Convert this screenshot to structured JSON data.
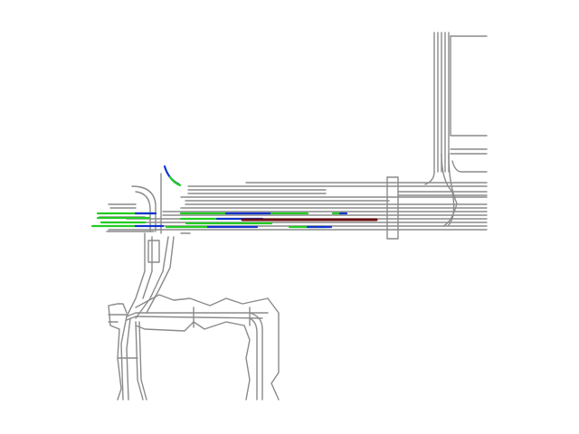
{
  "colors": {
    "background": "#ffffff",
    "road": "#8a8a8a",
    "trajectory_green": "#22cc22",
    "trajectory_blue": "#1133cc",
    "ego_path": "#6b0f0f"
  },
  "legend": "",
  "title": ""
}
